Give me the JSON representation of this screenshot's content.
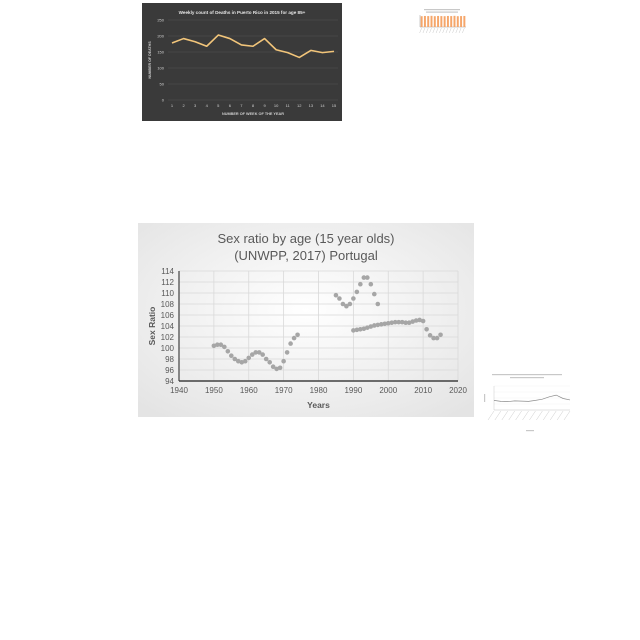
{
  "colors": {
    "dark_bg": "#3a3a3a",
    "dark_line": "#f2c57a",
    "light_bg": "#f2f2f2",
    "gray_point": "#a6a6a6",
    "orange_bar": "#f5a66b",
    "tiny_line": "#8c8c8c"
  },
  "chart_data": [
    {
      "type": "line",
      "title": "Weekly count of Deaths in Puerto Rico in 2015 for age 85+",
      "xlabel": "NUMBER OF WEEK OF THE YEAR",
      "ylabel": "NUMBER OF DEATHS",
      "x": [
        "1",
        "2",
        "3",
        "4",
        "5",
        "6",
        "7",
        "8",
        "9",
        "10",
        "11",
        "12",
        "13",
        "14",
        "15"
      ],
      "series": [
        {
          "values": [
            178,
            192,
            182,
            168,
            203,
            192,
            172,
            168,
            192,
            157,
            148,
            133,
            155,
            148,
            152
          ]
        }
      ],
      "ylim": [
        0,
        250
      ],
      "yticks": [
        "0",
        "50",
        "100",
        "150",
        "200",
        "250"
      ],
      "grid": true
    },
    {
      "type": "bar",
      "title": "",
      "categories": [
        "",
        "",
        "",
        "",
        "",
        "",
        "",
        "",
        "",
        "",
        "",
        "",
        "",
        ""
      ],
      "values": [
        90,
        92,
        91,
        93,
        90,
        92,
        91,
        90,
        92,
        91,
        93,
        90,
        91,
        92
      ],
      "ylim": [
        0,
        100
      ]
    },
    {
      "type": "scatter",
      "title": "Sex ratio by age (15 year olds) (UNWPP, 2017) Portugal",
      "xlabel": "Years",
      "ylabel": "Sex Ratio",
      "xlim": [
        1940,
        2020
      ],
      "ylim": [
        94,
        114
      ],
      "xticks": [
        "1940",
        "1950",
        "1960",
        "1970",
        "1980",
        "1990",
        "2000",
        "2010",
        "2020"
      ],
      "yticks": [
        "94",
        "96",
        "98",
        "100",
        "102",
        "104",
        "106",
        "108",
        "110",
        "112",
        "114"
      ],
      "grid": true,
      "series": [
        {
          "x": [
            1950,
            1951,
            1952,
            1953,
            1954,
            1955,
            1956,
            1957,
            1958,
            1959,
            1960,
            1961,
            1962,
            1963,
            1964,
            1965,
            1966,
            1967,
            1968,
            1969,
            1970,
            1971,
            1972,
            1973,
            1974,
            1985,
            1986,
            1987,
            1988,
            1989,
            1990,
            1991,
            1992,
            1993,
            1994,
            1995,
            1996,
            1997,
            1990,
            1991,
            1992,
            1993,
            1994,
            1995,
            1996,
            1997,
            1998,
            1999,
            2000,
            2001,
            2002,
            2003,
            2004,
            2005,
            2006,
            2007,
            2008,
            2009,
            2010,
            2011,
            2012,
            2013,
            2014,
            2015
          ],
          "y": [
            100.4,
            100.6,
            100.6,
            100.2,
            99.4,
            98.6,
            98.0,
            97.6,
            97.4,
            97.6,
            98.2,
            98.8,
            99.2,
            99.2,
            98.8,
            98.0,
            97.4,
            96.6,
            96.2,
            96.4,
            97.6,
            99.2,
            100.8,
            101.8,
            102.4,
            109.6,
            109.0,
            108.0,
            107.6,
            108.0,
            109.0,
            110.2,
            111.6,
            112.8,
            112.8,
            111.6,
            109.8,
            108.0,
            103.2,
            103.3,
            103.4,
            103.5,
            103.7,
            103.9,
            104.1,
            104.2,
            104.3,
            104.4,
            104.5,
            104.6,
            104.7,
            104.7,
            104.7,
            104.6,
            104.6,
            104.8,
            105.0,
            105.1,
            104.9,
            103.4,
            102.3,
            101.8,
            101.8,
            102.4
          ]
        }
      ]
    },
    {
      "type": "line",
      "title": "Sex ratio by age (80 year olds) (UNWPP, 2017) in the Year 2015",
      "xlabel": "Country",
      "categories": [
        "",
        "",
        "",
        "",
        "",
        "",
        "",
        "",
        "",
        "",
        "",
        ""
      ],
      "values": [
        40,
        36,
        35,
        38,
        37,
        36,
        40,
        45,
        55,
        62,
        48,
        42
      ],
      "ylim": [
        0,
        100
      ]
    }
  ]
}
